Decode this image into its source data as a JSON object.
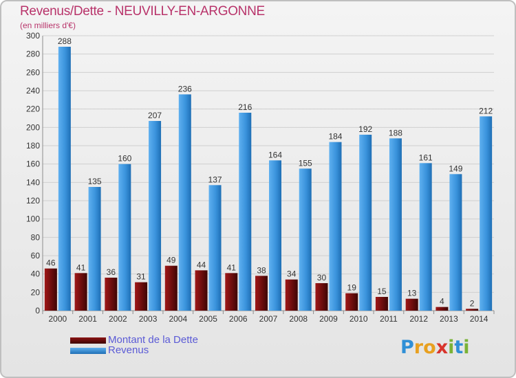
{
  "header": {
    "title": "Revenus/Dette - NEUVILLY-EN-ARGONNE",
    "subtitle": "(en milliers d'€)"
  },
  "legend": {
    "items": [
      {
        "label": "Montant de la Dette",
        "color": "#6b0d0d"
      },
      {
        "label": "Revenus",
        "color": "#3a93dc"
      }
    ]
  },
  "logo": {
    "text": "Proxiti"
  },
  "chart_data": {
    "type": "bar",
    "title": "Revenus/Dette - NEUVILLY-EN-ARGONNE",
    "subtitle": "(en milliers d'€)",
    "categories": [
      "2000",
      "2001",
      "2002",
      "2003",
      "2004",
      "2005",
      "2006",
      "2007",
      "2008",
      "2009",
      "2010",
      "2011",
      "2012",
      "2013",
      "2014"
    ],
    "series": [
      {
        "name": "Montant de la Dette",
        "color": "#6b0d0d",
        "values": [
          46,
          41,
          36,
          31,
          49,
          44,
          41,
          38,
          34,
          30,
          19,
          15,
          13,
          4,
          2
        ]
      },
      {
        "name": "Revenus",
        "color": "#3a93dc",
        "values": [
          288,
          135,
          160,
          207,
          236,
          137,
          216,
          164,
          155,
          184,
          192,
          188,
          161,
          149,
          212
        ]
      }
    ],
    "ylim": [
      0,
      300
    ],
    "yticks": [
      0,
      20,
      40,
      60,
      80,
      100,
      120,
      140,
      160,
      180,
      200,
      220,
      240,
      260,
      280,
      300
    ],
    "grid": true,
    "legend_position": "bottom-left"
  }
}
